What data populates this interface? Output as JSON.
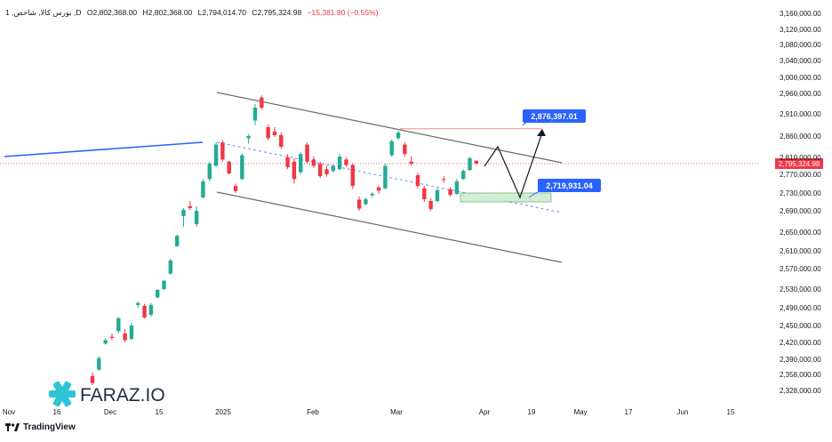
{
  "legend": {
    "symbol": "1 ,بورس کالا, شاخص ,D",
    "open": "O2,802,368.00",
    "high": "H2,802,368.00",
    "low": "L2,794,014.70",
    "close": "C2,795,324.98",
    "change": "−15,381.80 (−0.55%)"
  },
  "watermark": "FARAZ.IO",
  "footer_brand": "TradingView",
  "colors": {
    "up": "#22ab94",
    "down": "#f23645",
    "channel": "#6b6b6b",
    "trend": "#2962ff",
    "price_line": "#f23645",
    "label_bg": "#2962ff"
  },
  "chart_data": {
    "type": "candlestick",
    "y_axis": {
      "ticks": [
        3160000,
        3120000,
        3080000,
        3040000,
        3000000,
        2960000,
        2910000,
        2860000,
        2810000,
        2770000,
        2730000,
        2690000,
        2650000,
        2610000,
        2570000,
        2530000,
        2490000,
        2450000,
        2420000,
        2390000,
        2358000,
        2328000
      ],
      "tick_labels": [
        "3,160,000.00",
        "3,120,000.00",
        "3,080,000.00",
        "3,040,000.00",
        "3,000,000.00",
        "2,960,000.00",
        "2,910,000.00",
        "2,860,000.00",
        "2,810,000.00",
        "2,770,000.00",
        "2,730,000.00",
        "2,690,000.00",
        "2,650,000.00",
        "2,610,000.00",
        "2,570,000.00",
        "2,530,000.00",
        "2,490,000.00",
        "2,450,000.00",
        "2,420,000.00",
        "2,390,000.00",
        "2,358,000.00",
        "2,328,000.00"
      ]
    },
    "x_axis": {
      "labels": [
        "Nov",
        "16",
        "Dec",
        "15",
        "2025",
        "Feb",
        "Mar",
        "Apr",
        "19",
        "May",
        "17",
        "Jun",
        "15"
      ]
    },
    "current_price": {
      "value": 2795324.98,
      "label": "2,795,324.98"
    },
    "annotations": [
      {
        "label": "2,876,397.01",
        "value": 2876397.01
      },
      {
        "label": "2,719,931.04",
        "value": 2719931.04
      }
    ],
    "candles": [
      {
        "o": 2355000,
        "h": 2362000,
        "l": 2338000,
        "c": 2342000
      },
      {
        "o": 2368000,
        "h": 2395000,
        "l": 2366000,
        "c": 2392000
      },
      {
        "o": 2418000,
        "h": 2428000,
        "l": 2416000,
        "c": 2424000
      },
      {
        "o": 2430000,
        "h": 2436000,
        "l": 2424000,
        "c": 2428000
      },
      {
        "o": 2440000,
        "h": 2470000,
        "l": 2436000,
        "c": 2466000
      },
      {
        "o": 2436000,
        "h": 2444000,
        "l": 2420000,
        "c": 2424000
      },
      {
        "o": 2426000,
        "h": 2456000,
        "l": 2424000,
        "c": 2450000
      },
      {
        "o": 2496000,
        "h": 2503000,
        "l": 2490000,
        "c": 2500000
      },
      {
        "o": 2494000,
        "h": 2498000,
        "l": 2466000,
        "c": 2468000
      },
      {
        "o": 2474000,
        "h": 2500000,
        "l": 2470000,
        "c": 2496000
      },
      {
        "o": 2512000,
        "h": 2530000,
        "l": 2510000,
        "c": 2528000
      },
      {
        "o": 2530000,
        "h": 2548000,
        "l": 2528000,
        "c": 2546000
      },
      {
        "o": 2560000,
        "h": 2592000,
        "l": 2558000,
        "c": 2588000
      },
      {
        "o": 2620000,
        "h": 2645000,
        "l": 2618000,
        "c": 2642000
      },
      {
        "o": 2680000,
        "h": 2696000,
        "l": 2660000,
        "c": 2692000
      },
      {
        "o": 2700000,
        "h": 2712000,
        "l": 2692000,
        "c": 2696000
      },
      {
        "o": 2665000,
        "h": 2700000,
        "l": 2660000,
        "c": 2690000
      },
      {
        "o": 2720000,
        "h": 2760000,
        "l": 2718000,
        "c": 2755000
      },
      {
        "o": 2760000,
        "h": 2800000,
        "l": 2755000,
        "c": 2795000
      },
      {
        "o": 2790000,
        "h": 2845000,
        "l": 2788000,
        "c": 2840000
      },
      {
        "o": 2845000,
        "h": 2850000,
        "l": 2800000,
        "c": 2805000
      },
      {
        "o": 2800000,
        "h": 2802000,
        "l": 2770000,
        "c": 2772000
      },
      {
        "o": 2745000,
        "h": 2750000,
        "l": 2730000,
        "c": 2734000
      },
      {
        "o": 2760000,
        "h": 2820000,
        "l": 2758000,
        "c": 2815000
      },
      {
        "o": 2855000,
        "h": 2865000,
        "l": 2842000,
        "c": 2860000
      },
      {
        "o": 2895000,
        "h": 2935000,
        "l": 2885000,
        "c": 2925000
      },
      {
        "o": 2950000,
        "h": 2955000,
        "l": 2920000,
        "c": 2925000
      },
      {
        "o": 2880000,
        "h": 2886000,
        "l": 2850000,
        "c": 2855000
      },
      {
        "o": 2870000,
        "h": 2880000,
        "l": 2858000,
        "c": 2862000
      },
      {
        "o": 2862000,
        "h": 2868000,
        "l": 2830000,
        "c": 2835000
      },
      {
        "o": 2810000,
        "h": 2818000,
        "l": 2782000,
        "c": 2787000
      },
      {
        "o": 2800000,
        "h": 2808000,
        "l": 2750000,
        "c": 2760000
      },
      {
        "o": 2775000,
        "h": 2822000,
        "l": 2770000,
        "c": 2818000
      },
      {
        "o": 2840000,
        "h": 2845000,
        "l": 2795000,
        "c": 2800000
      },
      {
        "o": 2805000,
        "h": 2812000,
        "l": 2785000,
        "c": 2790000
      },
      {
        "o": 2795000,
        "h": 2800000,
        "l": 2762000,
        "c": 2766000
      },
      {
        "o": 2782000,
        "h": 2790000,
        "l": 2765000,
        "c": 2770000
      },
      {
        "o": 2778000,
        "h": 2794000,
        "l": 2774000,
        "c": 2790000
      },
      {
        "o": 2782000,
        "h": 2818000,
        "l": 2780000,
        "c": 2812000
      },
      {
        "o": 2805000,
        "h": 2810000,
        "l": 2788000,
        "c": 2792000
      },
      {
        "o": 2792000,
        "h": 2796000,
        "l": 2738000,
        "c": 2745000
      },
      {
        "o": 2715000,
        "h": 2722000,
        "l": 2690000,
        "c": 2695000
      },
      {
        "o": 2705000,
        "h": 2720000,
        "l": 2702000,
        "c": 2716000
      },
      {
        "o": 2725000,
        "h": 2732000,
        "l": 2720000,
        "c": 2728000
      },
      {
        "o": 2742000,
        "h": 2746000,
        "l": 2728000,
        "c": 2735000
      },
      {
        "o": 2740000,
        "h": 2795000,
        "l": 2738000,
        "c": 2790000
      },
      {
        "o": 2815000,
        "h": 2852000,
        "l": 2812000,
        "c": 2848000
      },
      {
        "o": 2855000,
        "h": 2872000,
        "l": 2852000,
        "c": 2868000
      },
      {
        "o": 2840000,
        "h": 2846000,
        "l": 2812000,
        "c": 2818000
      },
      {
        "o": 2800000,
        "h": 2812000,
        "l": 2790000,
        "c": 2795000
      },
      {
        "o": 2768000,
        "h": 2774000,
        "l": 2740000,
        "c": 2745000
      },
      {
        "o": 2740000,
        "h": 2745000,
        "l": 2710000,
        "c": 2716000
      },
      {
        "o": 2712000,
        "h": 2718000,
        "l": 2690000,
        "c": 2694000
      },
      {
        "o": 2712000,
        "h": 2740000,
        "l": 2708000,
        "c": 2736000
      },
      {
        "o": 2760000,
        "h": 2766000,
        "l": 2752000,
        "c": 2758000
      },
      {
        "o": 2738000,
        "h": 2742000,
        "l": 2722000,
        "c": 2726000
      },
      {
        "o": 2728000,
        "h": 2760000,
        "l": 2726000,
        "c": 2755000
      },
      {
        "o": 2760000,
        "h": 2782000,
        "l": 2758000,
        "c": 2778000
      },
      {
        "o": 2780000,
        "h": 2812000,
        "l": 2778000,
        "c": 2808000
      },
      {
        "o": 2802368,
        "h": 2802368,
        "l": 2794014.7,
        "c": 2795324.98
      }
    ]
  }
}
